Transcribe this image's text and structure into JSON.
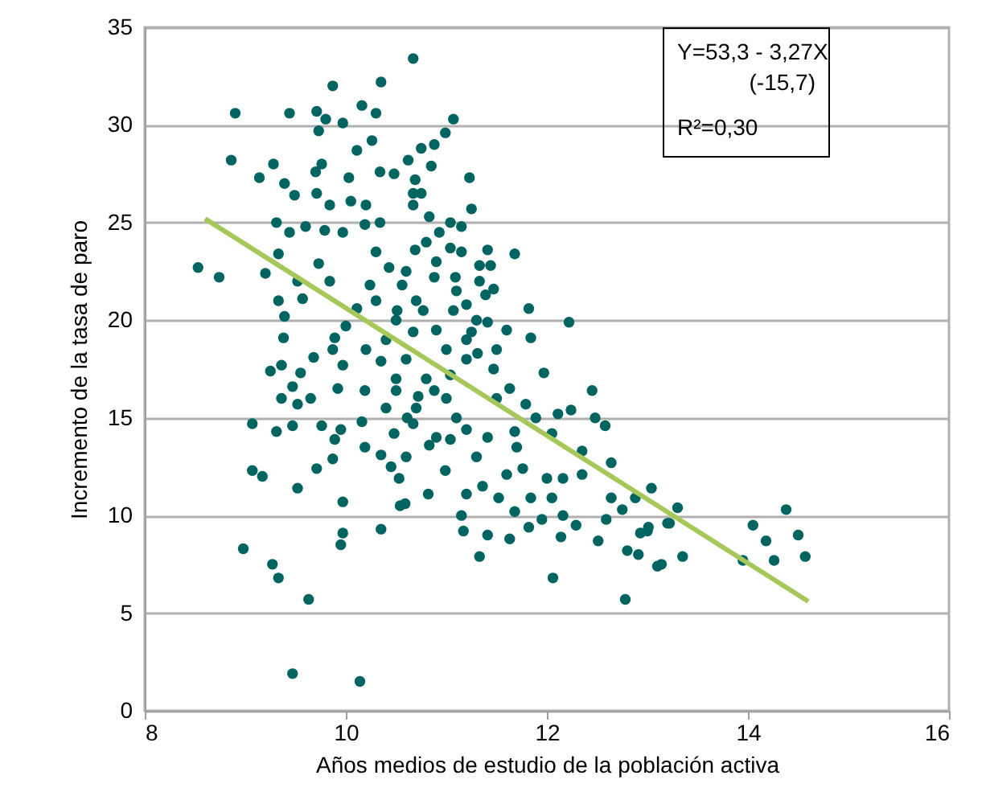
{
  "chart_data": {
    "type": "scatter",
    "xlabel": "Años medios de estudio de la población activa",
    "ylabel": "Incremento de la tasa de paro",
    "xlim": [
      8,
      16
    ],
    "xticks": [
      8,
      10,
      12,
      14,
      16
    ],
    "ylim": [
      0,
      35
    ],
    "yticks": [
      0,
      5,
      10,
      15,
      20,
      25,
      30,
      35
    ],
    "grid": "y",
    "marker": "circle",
    "annotations": [
      "Y=53,3 - 3,27X",
      "(-15,7)",
      "R²=0,30"
    ],
    "series": [
      {
        "color": "#006461",
        "x": [
          13.04,
          13.0,
          13.2,
          13.3,
          13.35,
          13.1,
          14.05,
          14.18,
          14.38,
          14.5,
          14.57,
          13.95,
          14.26,
          9.87,
          10.35,
          10.67,
          8.9,
          9.44,
          9.71,
          9.8,
          9.73,
          9.97,
          10.16,
          10.3,
          8.86,
          9.14,
          9.28,
          9.39,
          9.49,
          9.7,
          9.76,
          9.71,
          9.84,
          10.03,
          10.11,
          10.26,
          10.05,
          10.2,
          10.34,
          10.48,
          10.62,
          10.67,
          9.31,
          9.44,
          9.6,
          9.79,
          9.97,
          10.19,
          10.34,
          9.33,
          9.2,
          8.53,
          8.74,
          9.73,
          9.84,
          9.52,
          9.33,
          9.57,
          9.39,
          9.38,
          10.0,
          9.89,
          10.11,
          10.24,
          10.43,
          10.56,
          10.51,
          10.67,
          11.07,
          10.99,
          10.88,
          10.75,
          10.85,
          11.23,
          10.69,
          10.75,
          10.67,
          11.25,
          10.83,
          11.04,
          11.15,
          10.93,
          10.69,
          11.04,
          11.15,
          11.41,
          11.68,
          11.33,
          11.44,
          10.88,
          11.09,
          11.33,
          11.47,
          11.39,
          11.2,
          11.82,
          12.22,
          11.41,
          11.07,
          10.77,
          11.84,
          11.25,
          9.25,
          9.36,
          9.55,
          9.47,
          9.36,
          9.52,
          9.65,
          9.68,
          9.87,
          9.97,
          9.92,
          10.19,
          9.07,
          9.31,
          9.47,
          9.76,
          9.95,
          9.89,
          10.16,
          10.19,
          10.35,
          10.48,
          9.07,
          9.17,
          9.71,
          9.87,
          9.52,
          10.53,
          9.97,
          10.54,
          9.97,
          9.95,
          10.35,
          8.98,
          9.27,
          9.33,
          9.63,
          9.47,
          10.14,
          10.35,
          10.5,
          10.61,
          12.45,
          12.24,
          12.48,
          12.58,
          12.11,
          11.89,
          11.97,
          11.79,
          11.63,
          11.47,
          11.31,
          11.2,
          11.04,
          10.88,
          10.72,
          10.67,
          10.83,
          11.04,
          11.2,
          11.41,
          11.68,
          12.05,
          12.35,
          12.64,
          12.35,
          12.16,
          12.0,
          11.76,
          11.6,
          11.36,
          11.2,
          10.99,
          10.82,
          10.59,
          11.15,
          11.52,
          11.68,
          11.84,
          12.05,
          11.95,
          12.16,
          12.29,
          12.59,
          12.64,
          12.75,
          12.93,
          13.01,
          12.88,
          12.51,
          12.14,
          11.82,
          11.63,
          11.41,
          11.17,
          11.33,
          12.06,
          12.8,
          12.91,
          13.14,
          12.78,
          13.22,
          10.5,
          10.7,
          10.9,
          11.0,
          10.6,
          10.8,
          10.4,
          10.3,
          10.6,
          10.9,
          11.1,
          11.3,
          10.5,
          10.7,
          11.0,
          11.1,
          10.9,
          10.4,
          10.2,
          10.8,
          10.3,
          11.2,
          11.5,
          11.6,
          10.6,
          10.45,
          11.3,
          11.5,
          11.7
        ],
        "values": [
          11.4,
          9.2,
          9.6,
          10.4,
          7.9,
          7.4,
          9.5,
          8.7,
          10.3,
          9.0,
          7.9,
          7.7,
          7.7,
          32.0,
          32.2,
          33.4,
          30.6,
          30.6,
          30.7,
          30.3,
          29.7,
          30.1,
          31.0,
          30.6,
          28.2,
          27.3,
          28.0,
          27.0,
          26.4,
          27.6,
          28.0,
          26.5,
          25.9,
          27.3,
          28.7,
          29.2,
          26.1,
          25.9,
          27.6,
          27.5,
          28.2,
          26.5,
          25.0,
          24.5,
          24.8,
          24.6,
          24.5,
          24.9,
          25.0,
          23.4,
          22.4,
          22.7,
          22.2,
          22.9,
          22.0,
          22.0,
          21.0,
          21.1,
          20.2,
          19.1,
          19.7,
          19.1,
          20.6,
          21.8,
          22.7,
          21.8,
          20.5,
          19.4,
          30.3,
          29.6,
          29.0,
          28.8,
          27.9,
          27.3,
          27.2,
          26.5,
          25.9,
          25.7,
          25.3,
          25.0,
          24.8,
          24.5,
          23.6,
          23.7,
          23.5,
          23.6,
          23.4,
          22.8,
          22.8,
          22.2,
          22.2,
          22.0,
          21.6,
          21.3,
          20.8,
          20.6,
          19.9,
          19.9,
          20.5,
          20.5,
          19.1,
          19.4,
          17.4,
          17.7,
          17.3,
          16.6,
          16.0,
          15.7,
          16.0,
          18.1,
          18.5,
          17.7,
          16.5,
          16.4,
          14.7,
          14.3,
          14.6,
          14.6,
          14.4,
          13.9,
          14.8,
          13.5,
          13.1,
          14.2,
          12.3,
          12.0,
          12.4,
          12.9,
          11.4,
          11.9,
          10.7,
          10.5,
          9.1,
          8.5,
          9.3,
          8.3,
          7.5,
          6.8,
          5.7,
          1.9,
          1.5,
          17.9,
          16.4,
          15.0,
          16.4,
          15.4,
          15.0,
          14.6,
          15.2,
          15.0,
          17.3,
          15.7,
          16.5,
          17.5,
          18.3,
          18.0,
          17.2,
          16.4,
          16.1,
          14.7,
          13.6,
          13.9,
          14.4,
          14.0,
          14.3,
          14.2,
          13.3,
          12.7,
          12.1,
          11.9,
          11.9,
          12.4,
          12.1,
          11.5,
          11.1,
          12.3,
          11.1,
          10.6,
          10.0,
          10.9,
          10.2,
          10.9,
          10.9,
          9.8,
          10.0,
          9.5,
          9.8,
          10.9,
          10.3,
          9.1,
          9.4,
          10.9,
          8.7,
          8.9,
          9.4,
          8.8,
          9.0,
          9.2,
          7.9,
          6.8,
          8.2,
          8.0,
          7.5,
          5.7,
          9.6,
          20.0,
          21.0,
          19.5,
          18.5,
          18.0,
          17.0,
          19.0,
          21.0,
          22.5,
          23.0,
          21.5,
          20.0,
          17.0,
          15.5,
          16.0,
          15.0,
          14.0,
          15.5,
          18.5,
          24.0,
          23.5,
          19.0,
          18.5,
          19.5,
          13.0,
          12.5,
          13.0,
          16.0,
          13.5
        ]
      },
      {
        "type": "line",
        "color": "#a6c75a",
        "marker": "none",
        "x": [
          8.6,
          14.6
        ],
        "values": [
          25.2,
          5.6
        ]
      }
    ]
  }
}
